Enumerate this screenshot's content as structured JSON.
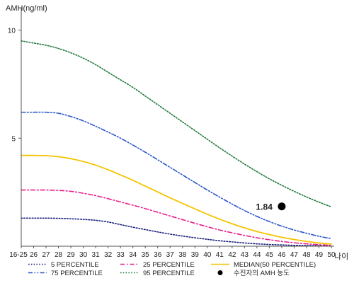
{
  "chart_data": {
    "type": "line",
    "ylabel": "AMH(ng/ml)",
    "xlabel": "나이",
    "ylim": [
      0,
      11
    ],
    "yticks": [
      5,
      10
    ],
    "categories": [
      "16-25",
      "26",
      "27",
      "28",
      "29",
      "30",
      "31",
      "32",
      "33",
      "34",
      "35",
      "36",
      "37",
      "38",
      "39",
      "40",
      "41",
      "42",
      "43",
      "44",
      "45",
      "46",
      "47",
      "48",
      "49",
      "50"
    ],
    "series": [
      {
        "name": "5 PERCENTILE",
        "color": "#1a237e",
        "dash": "dotted",
        "values": [
          1.3,
          1.3,
          1.3,
          1.29,
          1.27,
          1.24,
          1.2,
          1.12,
          1.0,
          0.88,
          0.77,
          0.66,
          0.56,
          0.47,
          0.39,
          0.32,
          0.25,
          0.2,
          0.15,
          0.11,
          0.08,
          0.06,
          0.04,
          0.03,
          0.02,
          0.01
        ]
      },
      {
        "name": "25 PERCENTILE",
        "color": "#e91e8c",
        "dash": "dashdot",
        "values": [
          2.6,
          2.6,
          2.6,
          2.58,
          2.54,
          2.45,
          2.34,
          2.2,
          2.05,
          1.9,
          1.74,
          1.57,
          1.4,
          1.23,
          1.06,
          0.9,
          0.75,
          0.62,
          0.5,
          0.39,
          0.3,
          0.22,
          0.16,
          0.11,
          0.07,
          0.04
        ]
      },
      {
        "name": "MEDIAN(50 PERCENTILE)",
        "color": "#f5c400",
        "dash": "solid",
        "values": [
          4.2,
          4.2,
          4.19,
          4.14,
          4.05,
          3.92,
          3.75,
          3.54,
          3.3,
          3.05,
          2.78,
          2.51,
          2.24,
          1.98,
          1.73,
          1.48,
          1.25,
          1.04,
          0.85,
          0.68,
          0.54,
          0.41,
          0.31,
          0.22,
          0.15,
          0.1
        ]
      },
      {
        "name": "75 PERCENTILE",
        "color": "#2a56c6",
        "dash": "dashdotdot",
        "values": [
          6.2,
          6.2,
          6.2,
          6.15,
          6.0,
          5.8,
          5.55,
          5.28,
          5.0,
          4.68,
          4.35,
          4.0,
          3.65,
          3.3,
          2.95,
          2.6,
          2.27,
          1.95,
          1.65,
          1.38,
          1.14,
          0.93,
          0.75,
          0.6,
          0.46,
          0.35
        ]
      },
      {
        "name": "95 PERCENTILE",
        "color": "#1e7a3c",
        "dash": "dotted",
        "values": [
          9.5,
          9.4,
          9.3,
          9.15,
          8.95,
          8.7,
          8.4,
          8.05,
          7.7,
          7.35,
          6.95,
          6.55,
          6.15,
          5.75,
          5.35,
          4.95,
          4.55,
          4.17,
          3.8,
          3.45,
          3.12,
          2.82,
          2.54,
          2.28,
          2.04,
          1.82
        ]
      }
    ],
    "marker": {
      "label": "수진자의 AMH 농도",
      "x": "46",
      "y": 1.84,
      "value_label": "1.84",
      "color": "#000000"
    },
    "legend_placement": "bottom"
  }
}
